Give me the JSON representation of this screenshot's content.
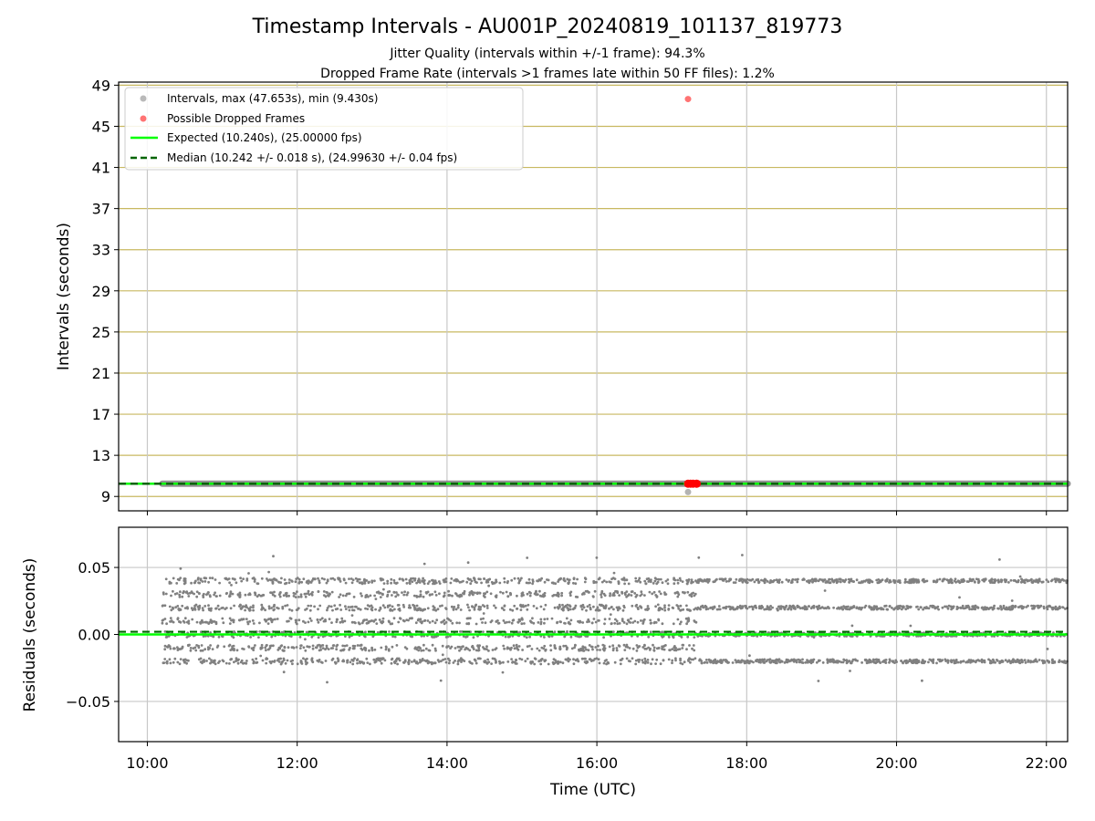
{
  "title": "Timestamp Intervals - AU001P_20240819_101137_819773",
  "subtitle_line1": "Jitter Quality (intervals within +/-1 frame): 94.3%",
  "subtitle_line2": "Dropped Frame Rate (intervals >1 frames late within 50 FF files): 1.2%",
  "colors": {
    "intervals": "#808080",
    "dropped": "#ff0000",
    "expected": "#00ff00",
    "median": "#006400",
    "hgrid_top": "#c8b860",
    "grid": "#c8c8c8"
  },
  "chart_data": [
    {
      "type": "scatter",
      "xlabel": "",
      "ylabel": "Intervals (seconds)",
      "xlim": [
        "09:37",
        "22:17"
      ],
      "ylim": [
        7.6,
        49.3
      ],
      "yticks": [
        9,
        13,
        17,
        21,
        25,
        29,
        33,
        37,
        41,
        45,
        49
      ],
      "xticks": [
        "10:00",
        "12:00",
        "14:00",
        "16:00",
        "18:00",
        "20:00",
        "22:00"
      ],
      "grid": true,
      "legend_position": "top-left",
      "legend": [
        "Intervals, max (47.653s), min (9.430s)",
        "Possible Dropped Frames",
        "Expected (10.240s), (25.00000 fps)",
        "Median (10.242 +/- 0.018 s), (24.99630 +/- 0.04 fps)"
      ],
      "series": [
        {
          "name": "Intervals, max (47.653s), min (9.430s)",
          "time_range": [
            "10:12",
            "22:17"
          ],
          "typical_value": 10.24,
          "outliers": [
            {
              "x": "17:13",
              "y": 9.43
            }
          ]
        },
        {
          "name": "Possible Dropped Frames",
          "points": [
            {
              "x": "17:13",
              "y": 47.653
            },
            {
              "x": "17:13",
              "y": 10.24
            },
            {
              "x": "17:15",
              "y": 10.24
            },
            {
              "x": "17:17",
              "y": 10.24
            },
            {
              "x": "17:20",
              "y": 10.24
            }
          ]
        },
        {
          "name": "Expected (10.240s), (25.00000 fps)",
          "y": 10.24
        },
        {
          "name": "Median (10.242 +/- 0.018 s), (24.99630 +/- 0.04 fps)",
          "y": 10.242
        }
      ]
    },
    {
      "type": "scatter",
      "xlabel": "Time (UTC)",
      "ylabel": "Residuals (seconds)",
      "xlim": [
        "09:37",
        "22:17"
      ],
      "ylim": [
        -0.08,
        0.08
      ],
      "yticks": [
        0.05,
        0.0,
        -0.05
      ],
      "ytick_labels": [
        "0.05",
        "0.00",
        "−0.05"
      ],
      "xticks": [
        "10:00",
        "12:00",
        "14:00",
        "16:00",
        "18:00",
        "20:00",
        "22:00"
      ],
      "xtick_labels": [
        "10:00",
        "12:00",
        "14:00",
        "16:00",
        "18:00",
        "20:00",
        "22:00"
      ],
      "grid": true,
      "series": [
        {
          "name": "residuals",
          "time_range": [
            "10:12",
            "22:17"
          ],
          "bands_before_17_20": [
            -0.02,
            -0.01,
            0.0,
            0.01,
            0.02,
            0.03,
            0.04
          ],
          "bands_after_17_20": [
            -0.02,
            0.0,
            0.02,
            0.04
          ],
          "min": -0.042,
          "max": 0.06
        },
        {
          "name": "expected",
          "y": 0.0
        },
        {
          "name": "median",
          "y": 0.002
        }
      ]
    }
  ]
}
